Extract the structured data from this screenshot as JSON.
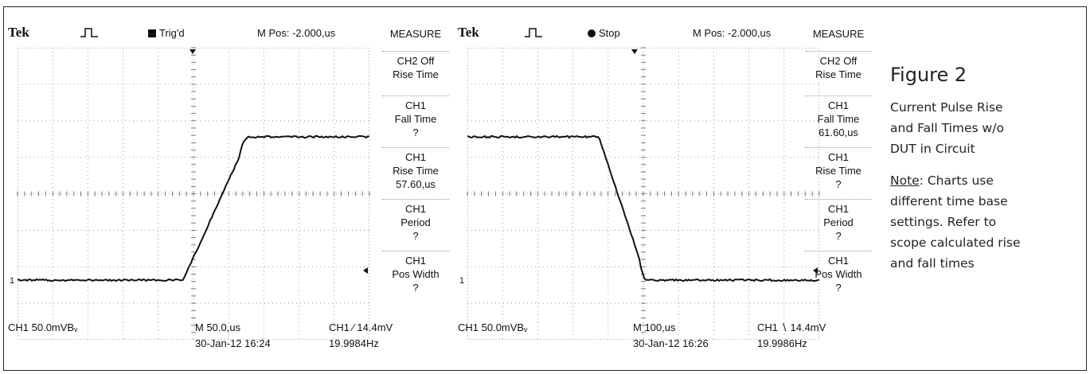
{
  "scope_left": {
    "brand": "Tek",
    "status": "Trig'd",
    "status_icon": "trig-square-icon",
    "mpos": "M Pos: -2.000,us",
    "measure_title": "MEASURE",
    "measurements": [
      {
        "l1": "CH2 Off",
        "l2": "Rise Time",
        "l3": ""
      },
      {
        "l1": "CH1",
        "l2": "Fall Time",
        "l3": "?"
      },
      {
        "l1": "CH1",
        "l2": "Rise Time",
        "l3": "57.60,us"
      },
      {
        "l1": "CH1",
        "l2": "Period",
        "l3": "?"
      },
      {
        "l1": "CH1",
        "l2": "Pos Width",
        "l3": "?"
      }
    ],
    "ch_scale": "CH1  50.0mVBᵥ",
    "timebase": "M 50.0,us",
    "datetime": "30-Jan-12 16:24",
    "trigger": "CH1 ∕ 14.4mV",
    "freq": "19.9984Hz",
    "marker": "1",
    "waveform": "rising"
  },
  "scope_right": {
    "brand": "Tek",
    "status": "Stop",
    "status_icon": "stop-dot-icon",
    "mpos": "M Pos: -2.000,us",
    "measure_title": "MEASURE",
    "measurements": [
      {
        "l1": "CH2 Off",
        "l2": "Rise Time",
        "l3": ""
      },
      {
        "l1": "CH1",
        "l2": "Fall Time",
        "l3": "61.60,us"
      },
      {
        "l1": "CH1",
        "l2": "Rise Time",
        "l3": "?"
      },
      {
        "l1": "CH1",
        "l2": "Period",
        "l3": "?"
      },
      {
        "l1": "CH1",
        "l2": "Pos Width",
        "l3": "?"
      }
    ],
    "ch_scale": "CH1  50.0mVBᵥ",
    "timebase": "M 100,us",
    "datetime": "30-Jan-12 16:26",
    "trigger": "CH1 ∖ 14.4mV",
    "freq": "19.9986Hz",
    "marker": "1",
    "waveform": "falling"
  },
  "caption": {
    "title": "Figure 2",
    "lines": [
      "Current Pulse Rise",
      "and Fall Times w/o",
      "DUT in Circuit"
    ],
    "note_label": "Note",
    "note_lines": [
      ": Charts use",
      "different time base",
      "settings. Refer to",
      "scope calculated rise",
      "and fall times"
    ]
  }
}
